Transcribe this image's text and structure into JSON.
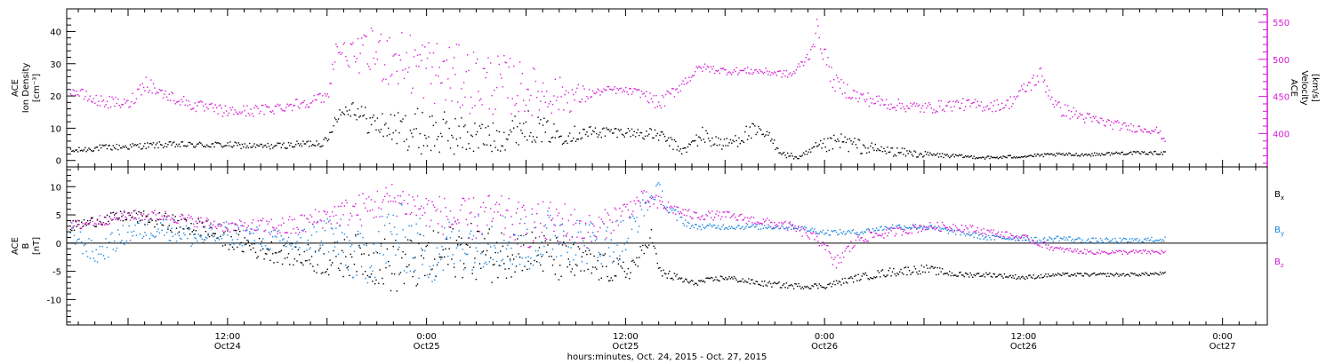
{
  "figure": {
    "xlabel": "hours:minutes, Oct. 24, 2015 - Oct. 27, 2015",
    "xticks": [
      {
        "t": 18,
        "time": "12:00",
        "date": "Oct24"
      },
      {
        "t": 30,
        "time": "0:00",
        "date": "Oct25"
      },
      {
        "t": 42,
        "time": "12:00",
        "date": "Oct25"
      },
      {
        "t": 54,
        "time": "0:00",
        "date": "Oct26"
      },
      {
        "t": 66,
        "time": "12:00",
        "date": "Oct26"
      },
      {
        "t": 78,
        "time": "0:00",
        "date": "Oct27"
      }
    ],
    "xlim_hours": [
      8.3,
      80.7
    ]
  },
  "colors": {
    "black": "#000000",
    "magenta": "#d61ad6",
    "blue": "#1a86e0"
  },
  "chart_data": [
    {
      "type": "scatter",
      "title": "",
      "ylabel_left": [
        "ACE",
        "Ion Density",
        "[cm⁻³]"
      ],
      "ylabel_right": [
        "ACE",
        "Velocity",
        "[km/s]"
      ],
      "ylim_left": [
        -2,
        47
      ],
      "ylim_right": [
        355,
        568
      ],
      "yticks_left": [
        0,
        10,
        20,
        30,
        40
      ],
      "yticks_right": [
        400,
        450,
        500,
        550
      ],
      "series": [
        {
          "axis": "left",
          "color": "black",
          "x": [
            8.5,
            10,
            12,
            14,
            16,
            18,
            20,
            22,
            24,
            24.5,
            25.5,
            26.5,
            28,
            30,
            32,
            34,
            36,
            38,
            40,
            42,
            44,
            45.5,
            46.5,
            48,
            49.5,
            50.5,
            51.5,
            52.5,
            53.5,
            55,
            56.5,
            58,
            60,
            62,
            64,
            66,
            68,
            70,
            72,
            74.5
          ],
          "y": [
            3,
            4,
            4.5,
            5,
            5,
            5,
            4.5,
            5,
            6,
            14,
            17,
            12,
            10,
            9,
            8,
            7,
            11,
            8,
            9,
            9,
            8,
            3,
            8,
            5,
            9,
            8,
            2,
            1,
            4,
            6,
            4,
            3,
            2,
            1.5,
            1,
            1.5,
            2,
            2,
            2.5,
            2.5
          ],
          "scatter": [
            0.8,
            1,
            1,
            1,
            1,
            1,
            1,
            1,
            1.5,
            2,
            3,
            4,
            5,
            8,
            6,
            5,
            5,
            3,
            2,
            1.5,
            2,
            1.5,
            3,
            2,
            3,
            2,
            1,
            0.8,
            2,
            3,
            2,
            1.5,
            1,
            0.5,
            0.5,
            0.5,
            0.5,
            0.5,
            0.5,
            0.5
          ]
        },
        {
          "axis": "right",
          "color": "magenta",
          "x": [
            8.5,
            10,
            12,
            13,
            14,
            16,
            18,
            20,
            22,
            24,
            24.5,
            25.5,
            27,
            29,
            31,
            33,
            35,
            37,
            39,
            40,
            41,
            42,
            43,
            44,
            45.5,
            46.5,
            48,
            50,
            52,
            53,
            53.5,
            54.5,
            56,
            58,
            60,
            62,
            64,
            65,
            66,
            67,
            68,
            70,
            72,
            74,
            74.5
          ],
          "y": [
            460,
            445,
            440,
            470,
            455,
            438,
            430,
            432,
            440,
            450,
            515,
            505,
            510,
            495,
            480,
            470,
            465,
            455,
            450,
            455,
            460,
            458,
            455,
            440,
            470,
            490,
            485,
            485,
            480,
            505,
            540,
            470,
            450,
            440,
            435,
            440,
            438,
            440,
            460,
            480,
            435,
            420,
            410,
            405,
            392
          ],
          "scatter": [
            8,
            8,
            8,
            12,
            8,
            8,
            8,
            8,
            8,
            8,
            12,
            18,
            40,
            45,
            45,
            45,
            40,
            30,
            20,
            5,
            5,
            5,
            6,
            10,
            8,
            6,
            5,
            5,
            5,
            8,
            15,
            12,
            10,
            8,
            8,
            8,
            8,
            8,
            10,
            12,
            10,
            8,
            6,
            5,
            4
          ]
        }
      ]
    },
    {
      "type": "scatter",
      "title": "",
      "ylabel": [
        "ACE",
        "B",
        "[nT]"
      ],
      "ylim": [
        -14.5,
        13.5
      ],
      "yticks": [
        -10,
        -5,
        0,
        5,
        10
      ],
      "zero_line": true,
      "legend": [
        {
          "label": "B",
          "sub": "x",
          "color": "black"
        },
        {
          "label": "B",
          "sub": "y",
          "color": "blue"
        },
        {
          "label": "B",
          "sub": "z",
          "color": "magenta"
        }
      ],
      "series": [
        {
          "name": "Bx",
          "color": "black",
          "x": [
            8.5,
            10,
            12,
            14,
            16,
            18,
            20,
            22,
            24,
            26,
            28,
            30,
            32,
            34,
            36,
            38,
            40,
            42,
            43,
            43.5,
            44,
            46,
            48,
            50,
            52,
            54,
            56,
            58,
            60,
            62,
            64,
            66,
            68,
            70,
            72,
            74.5
          ],
          "y": [
            3,
            4,
            5,
            4,
            3,
            1,
            -1,
            -2,
            -3,
            -2,
            -4,
            -3,
            -1,
            -2,
            -1,
            -3,
            -4,
            -5,
            -2,
            2,
            -5,
            -7,
            -6,
            -7,
            -7.5,
            -7.5,
            -6,
            -5,
            -4.5,
            -5.5,
            -5.5,
            -6,
            -5.5,
            -5.5,
            -5.5,
            -5.3
          ],
          "scatter": [
            1,
            1,
            1,
            1.5,
            2,
            2,
            2,
            2,
            3,
            4,
            5,
            5,
            5,
            5,
            4,
            4,
            3,
            2,
            2,
            1,
            1,
            0.5,
            0.5,
            0.5,
            0.5,
            0.5,
            0.6,
            0.8,
            0.8,
            0.5,
            0.4,
            0.4,
            0.3,
            0.3,
            0.3,
            0.3
          ]
        },
        {
          "name": "By",
          "color": "blue",
          "x": [
            8.5,
            10,
            12,
            14,
            16,
            18,
            20,
            22,
            24,
            26,
            28,
            30,
            32,
            34,
            36,
            38,
            40,
            42,
            43,
            44,
            44.5,
            46,
            48,
            50,
            52,
            54,
            56,
            58,
            60,
            62,
            64,
            66,
            67,
            68,
            70,
            72,
            74.5
          ],
          "y": [
            2,
            -2,
            2,
            3,
            1,
            2,
            1,
            0,
            2,
            -3,
            2,
            -2,
            0,
            1,
            0,
            2,
            0,
            1,
            6,
            10,
            6,
            3,
            3,
            3,
            3,
            2,
            2,
            3,
            3,
            2,
            1,
            1,
            0.5,
            1,
            0.5,
            0.5,
            0.8
          ],
          "scatter": [
            2,
            2,
            2,
            2,
            2,
            2,
            2,
            2,
            4,
            5,
            6,
            6,
            5,
            5,
            5,
            5,
            4,
            4,
            2,
            1,
            1.5,
            0.5,
            0.5,
            0.5,
            0.5,
            0.5,
            0.5,
            0.5,
            0.5,
            0.5,
            0.5,
            0.5,
            0.5,
            0.5,
            0.5,
            0.5,
            0.4
          ]
        },
        {
          "name": "Bz",
          "color": "magenta",
          "x": [
            8.5,
            10,
            12,
            14,
            16,
            18,
            20,
            22,
            24,
            26,
            28,
            30,
            32,
            34,
            36,
            38,
            40,
            42,
            43,
            44,
            45,
            46,
            48,
            50,
            52,
            54,
            54.5,
            56,
            58,
            60,
            62,
            64,
            66,
            67,
            68,
            70,
            72,
            74.5
          ],
          "y": [
            3,
            4,
            5,
            5,
            4,
            3,
            3,
            3,
            5,
            6,
            8,
            6,
            4,
            5,
            3,
            4,
            2,
            6,
            8,
            7,
            6,
            5,
            5,
            4,
            3,
            0,
            -4,
            1,
            2,
            3,
            3,
            2,
            1,
            0,
            -1,
            -1.5,
            -1.5,
            -1.5
          ],
          "scatter": [
            1,
            1,
            1,
            1,
            1,
            1,
            1.5,
            2,
            2,
            3,
            3,
            3,
            4,
            4,
            4,
            4,
            3,
            2,
            1.5,
            1.5,
            1,
            0.8,
            0.8,
            0.8,
            0.8,
            1,
            1.5,
            1,
            0.8,
            0.8,
            0.8,
            0.6,
            0.6,
            0.6,
            0.5,
            0.4,
            0.4,
            0.4
          ]
        }
      ]
    }
  ]
}
